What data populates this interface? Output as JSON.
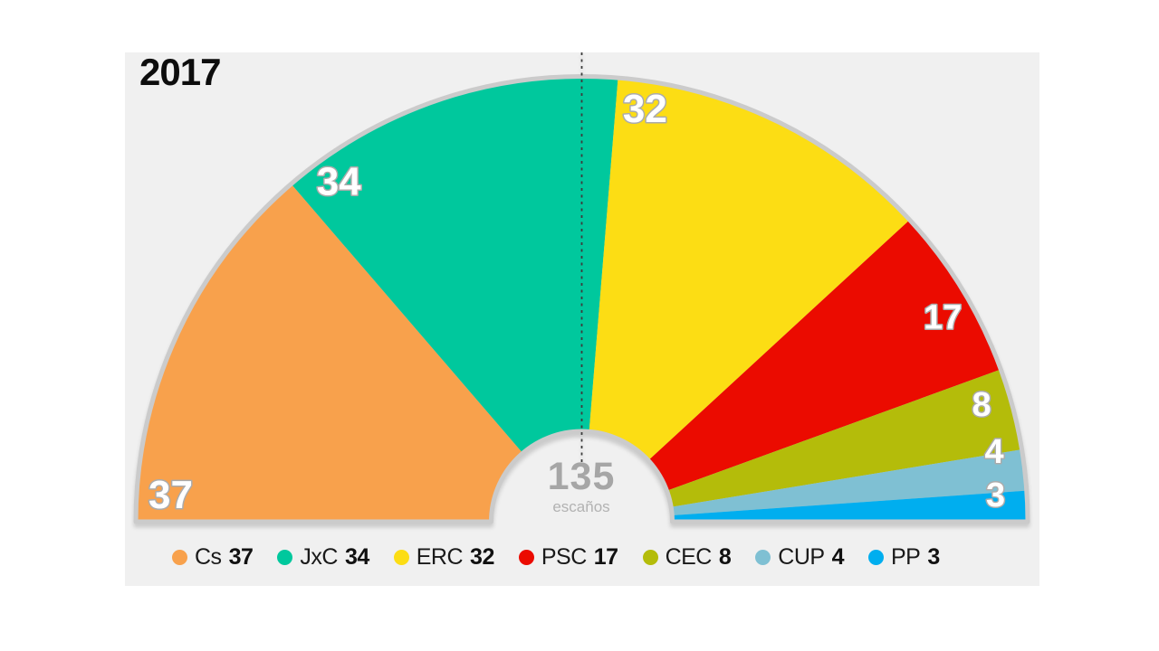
{
  "chart_data": {
    "type": "pie",
    "subtype": "hemicycle-parliament",
    "title": "2017",
    "total_seats": 135,
    "total_label": "escaños",
    "legend_position": "bottom",
    "parties": [
      {
        "name": "Cs",
        "seats": 37,
        "color": "#F8A14C"
      },
      {
        "name": "JxC",
        "seats": 34,
        "color": "#00C89D"
      },
      {
        "name": "ERC",
        "seats": 32,
        "color": "#FCDD14"
      },
      {
        "name": "PSC",
        "seats": 17,
        "color": "#EB0B00"
      },
      {
        "name": "CEC",
        "seats": 8,
        "color": "#B4BC0A"
      },
      {
        "name": "CUP",
        "seats": 4,
        "color": "#7FC0D3"
      },
      {
        "name": "PP",
        "seats": 3,
        "color": "#00AEEF"
      }
    ]
  },
  "colors": {
    "page_background": "#FFFFFF",
    "chart_background": "#F0F0F0",
    "outline": "#CBCBCB",
    "divider_line": "#3C3C3C",
    "center_text": "#A6A6A6",
    "sector_label_text": "#FFFFFF",
    "sector_label_halo": "#ABABAB",
    "title_text": "#0D0D0D",
    "legend_text": "#1A1A1A"
  }
}
